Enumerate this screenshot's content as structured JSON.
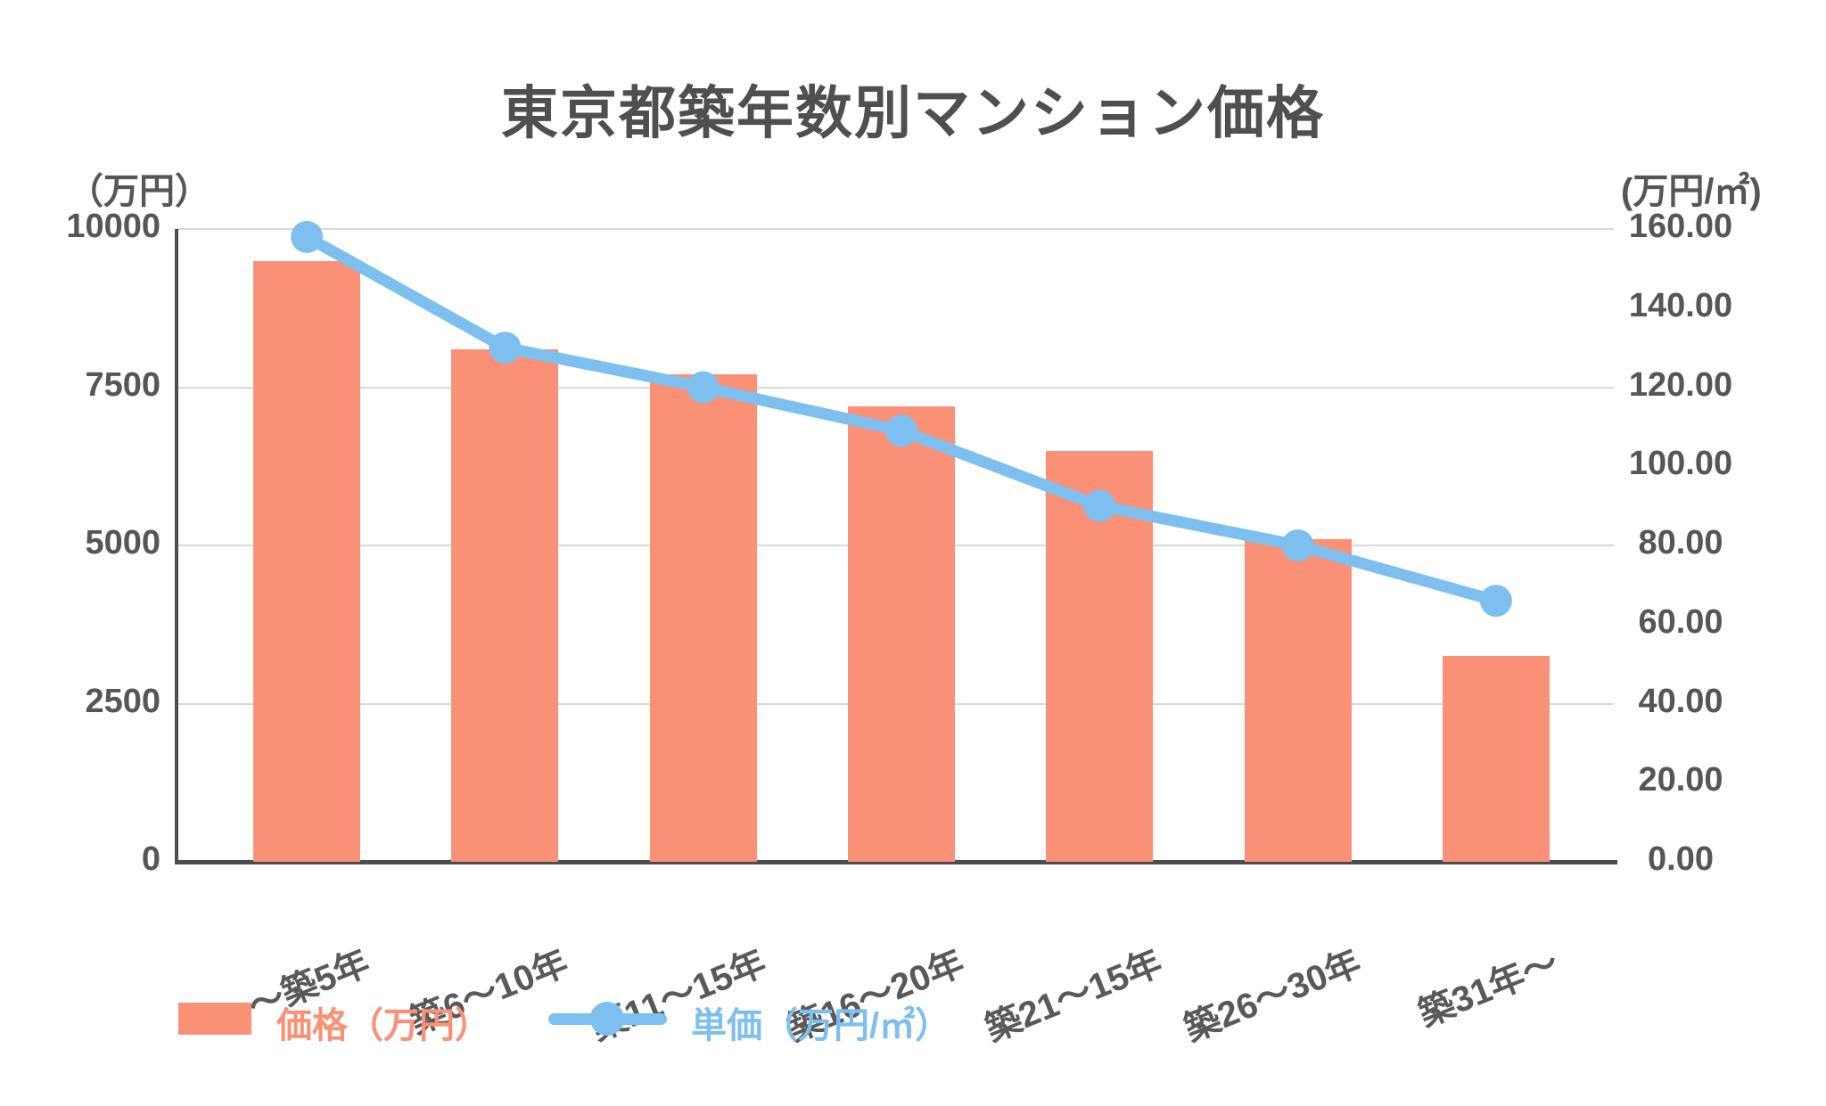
{
  "chart_data": {
    "type": "combo",
    "title": "東京都築年数別マンション価格",
    "categories": [
      "～築5年",
      "築6～10年",
      "築11～15年",
      "築16～20年",
      "築21～15年",
      "築26～30年",
      "築31年～"
    ],
    "series": [
      {
        "name": "価格（万円）",
        "type": "bar",
        "y_axis": "left",
        "color": "#FA9076",
        "values": [
          9500,
          8100,
          7700,
          7200,
          6500,
          5100,
          3250
        ]
      },
      {
        "name": "単価（万円/㎡）",
        "type": "line",
        "y_axis": "right",
        "color": "#7DBFEF",
        "values": [
          158,
          130,
          120,
          109,
          90,
          80,
          66
        ]
      }
    ],
    "left_axis": {
      "unit_label": "（万円）",
      "range": [
        0,
        10000
      ],
      "ticks": [
        "0",
        "2500",
        "5000",
        "7500",
        "10000"
      ]
    },
    "right_axis": {
      "unit_label": "(万円/㎡)",
      "range": [
        0,
        160
      ],
      "ticks": [
        "0.00",
        "20.00",
        "40.00",
        "60.00",
        "80.00",
        "100.00",
        "120.00",
        "140.00",
        "160.00"
      ]
    },
    "grid": {
      "horizontal": true,
      "at_left_values": [
        2500,
        5000,
        7500,
        10000
      ]
    },
    "legend_position": "bottom-left",
    "colors": {
      "bar": "#FA9076",
      "line": "#7DBFEF",
      "title_text": "#4f4f4f",
      "tick_text": "#565656",
      "axis_line": "#4d4d4d",
      "gridline": "#d9d9d9"
    }
  }
}
